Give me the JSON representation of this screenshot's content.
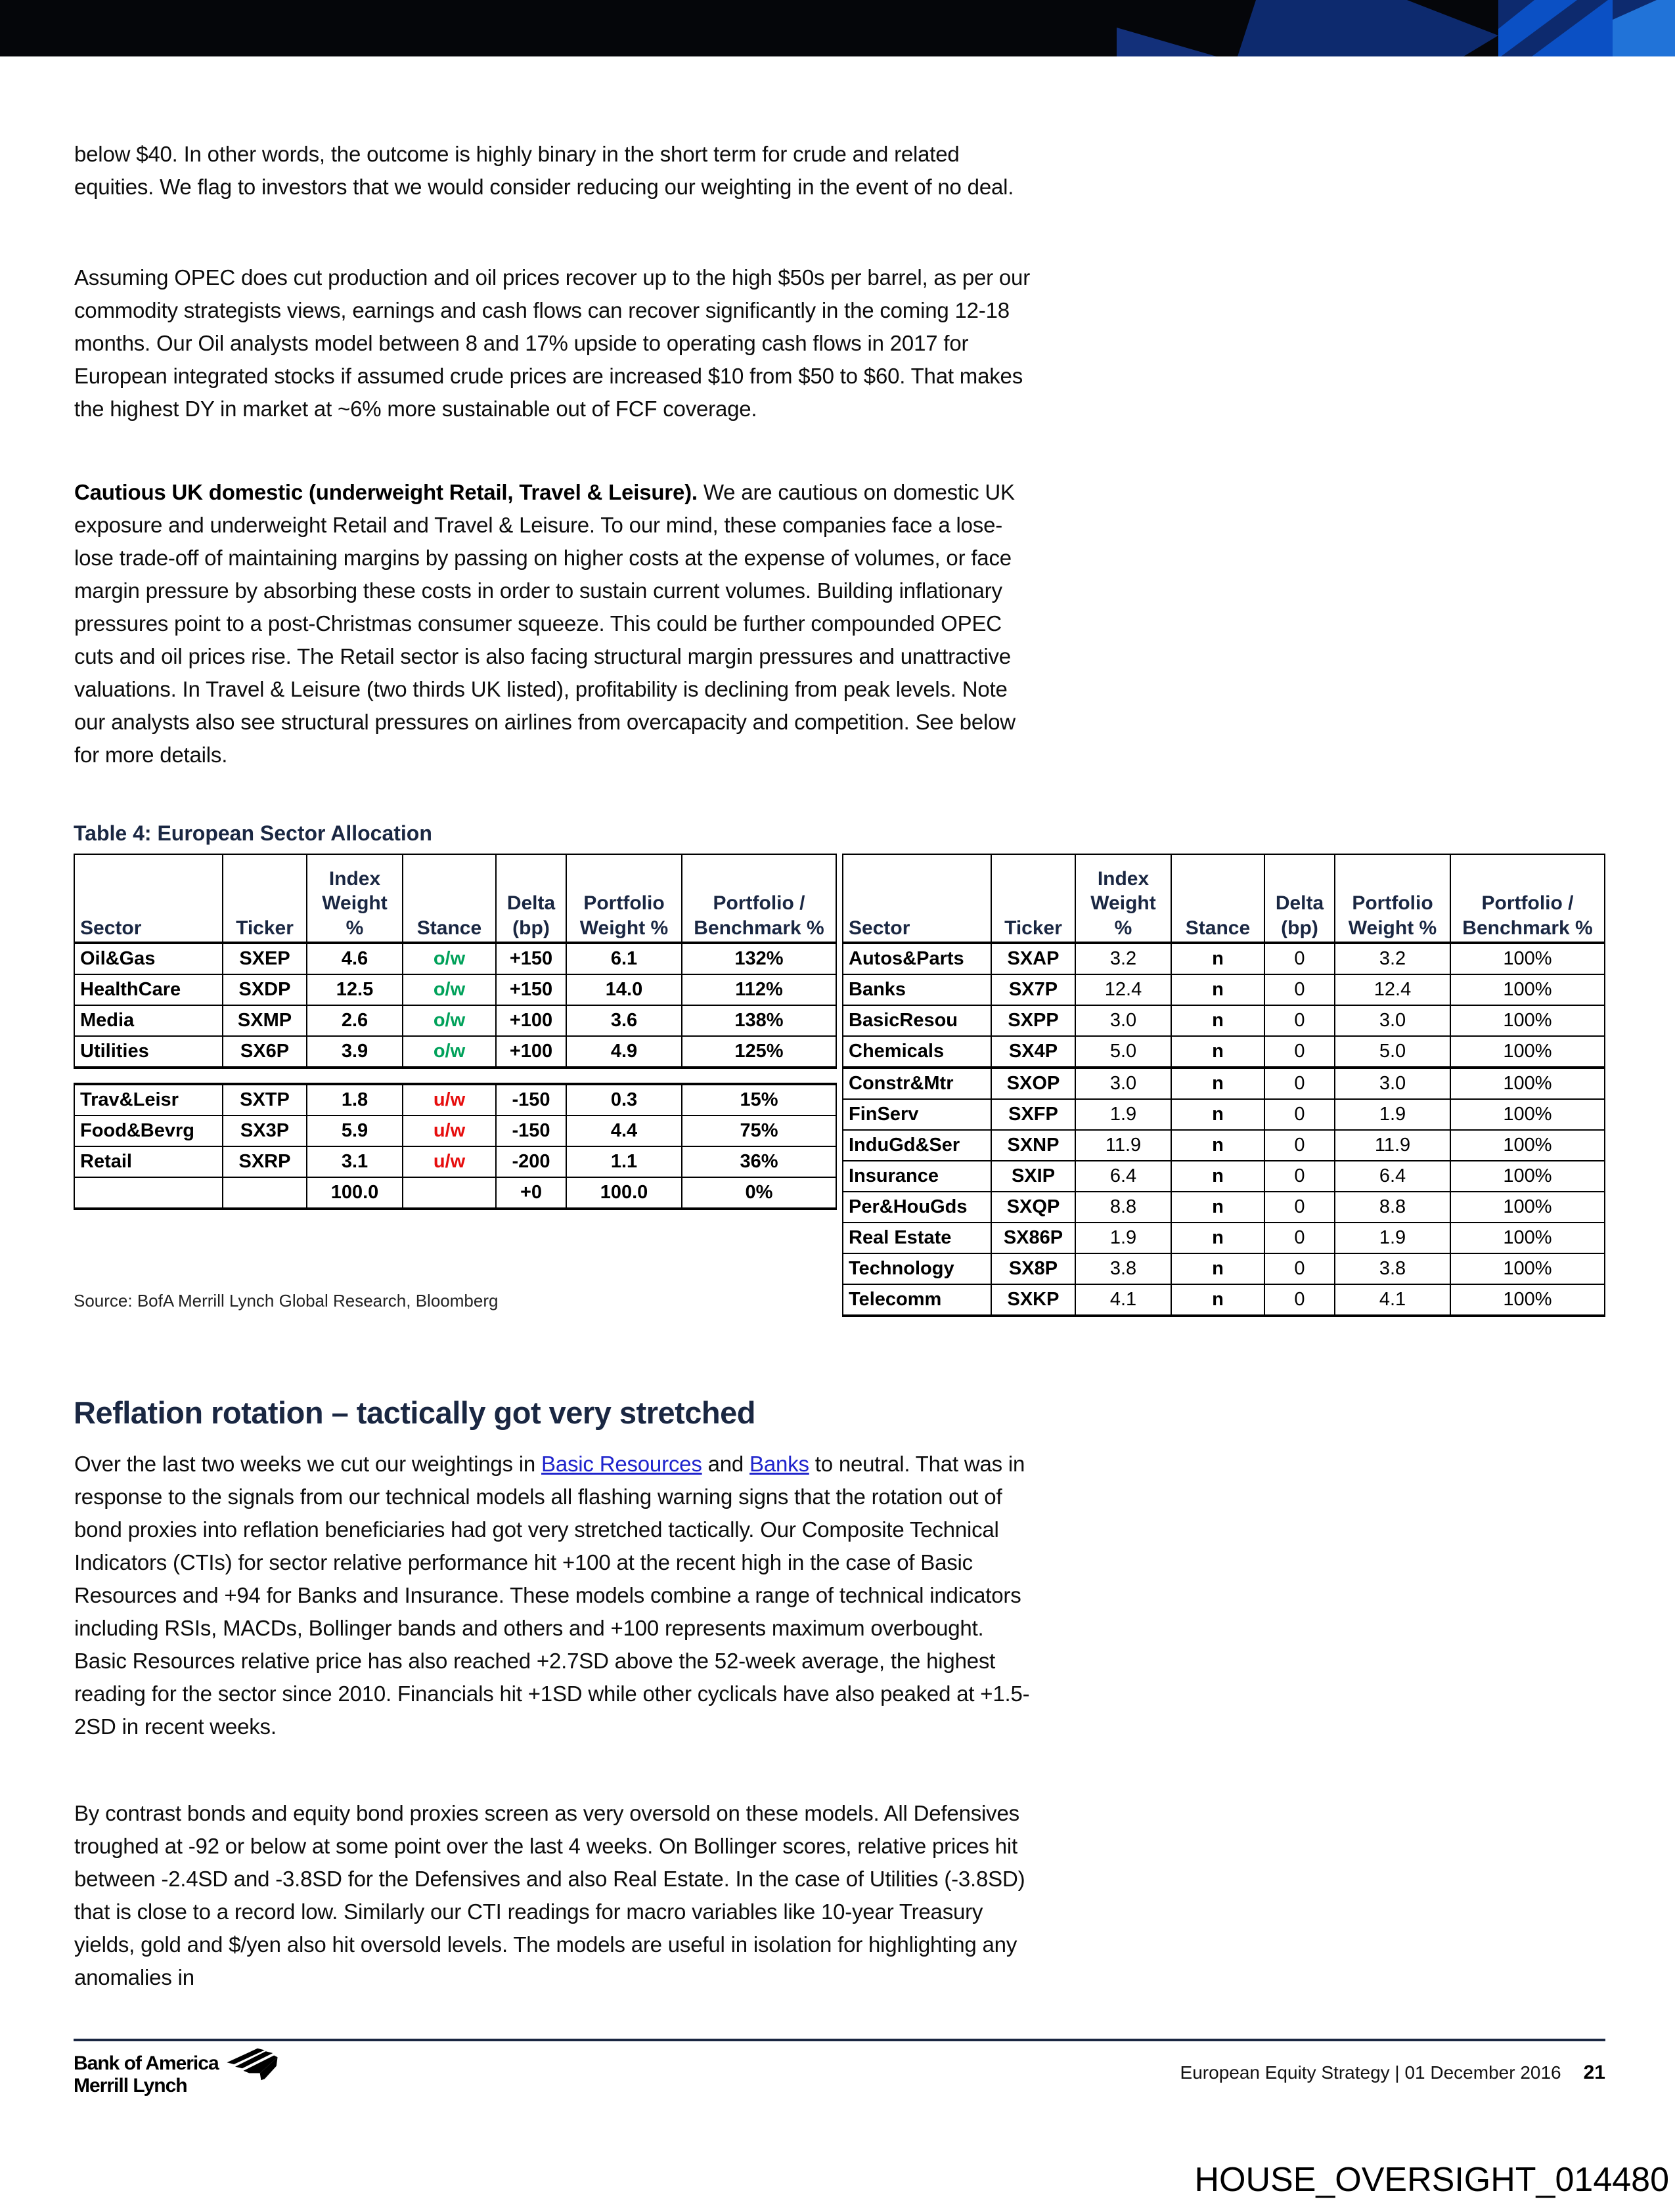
{
  "colors": {
    "navy": "#1a2742",
    "overweight_green": "#00a15a",
    "underweight_red": "#e60d0d",
    "link_blue": "#1f24cc",
    "banner_black": "#05060a",
    "banner_navy": "#0d2a6e",
    "banner_blue": "#0b50c4",
    "banner_lightblue": "#2173d8"
  },
  "body": {
    "p1": "below $40. In other words, the outcome is highly binary in the short term for crude and related equities. We flag to investors that we would consider reducing our weighting in the event of no deal.",
    "p2": "Assuming OPEC does cut production and oil prices recover up to the high $50s per barrel, as per our commodity strategists views, earnings and cash flows can recover significantly in the coming 12-18 months. Our Oil analysts model between 8 and 17% upside to operating cash flows in 2017 for European integrated stocks if assumed crude prices are increased $10 from $50 to $60. That makes the highest DY in market at ~6% more sustainable out of FCF coverage.",
    "p3_lead": "Cautious UK domestic (underweight Retail, Travel & Leisure).",
    "p3_rest": " We are cautious on domestic UK exposure and underweight Retail and Travel & Leisure. To our mind, these companies face a lose-lose trade-off of maintaining margins by passing on higher costs at the expense of volumes, or face margin pressure by absorbing these costs in order to sustain current volumes. Building inflationary pressures point to a post-Christmas consumer squeeze. This could be further compounded OPEC cuts and oil prices rise. The Retail sector is also facing structural margin pressures and unattractive valuations. In Travel & Leisure (two thirds UK listed), profitability is declining from peak levels. Note our analysts also see structural pressures on airlines from overcapacity and competition. See below for more details.",
    "p4_pre": "Over the last two weeks we cut our weightings in ",
    "p4_link1": "Basic Resources",
    "p4_mid": " and ",
    "p4_link2": "Banks",
    "p4_post": " to neutral. That was in response to the signals from our technical models all flashing warning signs that the rotation out of bond proxies into reflation beneficiaries had got very stretched tactically. Our Composite Technical Indicators (CTIs) for sector relative performance hit +100 at the recent high in the case of Basic Resources and +94 for Banks and Insurance. These models combine a range of technical indicators including RSIs, MACDs, Bollinger bands and others and +100 represents maximum overbought. Basic Resources relative price has also reached +2.7SD above the 52-week average, the highest reading for the sector since 2010. Financials hit +1SD while other cyclicals have also peaked at +1.5-2SD in recent weeks.",
    "p5": "By contrast bonds and equity bond proxies screen as very oversold on these models. All Defensives troughed at -92 or below at some point over the last 4 weeks. On Bollinger scores, relative prices hit between -2.4SD and -3.8SD for the Defensives and also Real Estate. In the case of Utilities (-3.8SD) that is close to a record low. Similarly our CTI readings for macro variables like 10-year Treasury yields, gold and $/yen also hit oversold levels. The models are useful in isolation for highlighting any anomalies in"
  },
  "section": {
    "heading": "Reflation rotation – tactically got very stretched"
  },
  "table": {
    "title": "Table 4: European Sector Allocation",
    "headers": [
      "Sector",
      "Ticker",
      "Index\nWeight\n%",
      "Stance",
      "Delta\n(bp)",
      "Portfolio\nWeight %",
      "Portfolio /\nBenchmark %"
    ],
    "left": {
      "group1": [
        [
          "Oil&Gas",
          "SXEP",
          "4.6",
          "o/w",
          "+150",
          "6.1",
          "132%"
        ],
        [
          "HealthCare",
          "SXDP",
          "12.5",
          "o/w",
          "+150",
          "14.0",
          "112%"
        ],
        [
          "Media",
          "SXMP",
          "2.6",
          "o/w",
          "+100",
          "3.6",
          "138%"
        ],
        [
          "Utilities",
          "SX6P",
          "3.9",
          "o/w",
          "+100",
          "4.9",
          "125%"
        ]
      ],
      "group2": [
        [
          "Trav&Leisr",
          "SXTP",
          "1.8",
          "u/w",
          "-150",
          "0.3",
          "15%"
        ],
        [
          "Food&Bevrg",
          "SX3P",
          "5.9",
          "u/w",
          "-150",
          "4.4",
          "75%"
        ],
        [
          "Retail",
          "SXRP",
          "3.1",
          "u/w",
          "-200",
          "1.1",
          "36%"
        ],
        [
          "",
          "",
          "100.0",
          "",
          "+0",
          "100.0",
          "0%"
        ]
      ]
    },
    "right": {
      "rows": [
        [
          "Autos&Parts",
          "SXAP",
          "3.2",
          "n",
          "0",
          "3.2",
          "100%"
        ],
        [
          "Banks",
          "SX7P",
          "12.4",
          "n",
          "0",
          "12.4",
          "100%"
        ],
        [
          "BasicResou",
          "SXPP",
          "3.0",
          "n",
          "0",
          "3.0",
          "100%"
        ],
        [
          "Chemicals",
          "SX4P",
          "5.0",
          "n",
          "0",
          "5.0",
          "100%"
        ],
        [
          "Constr&Mtr",
          "SXOP",
          "3.0",
          "n",
          "0",
          "3.0",
          "100%"
        ],
        [
          "FinServ",
          "SXFP",
          "1.9",
          "n",
          "0",
          "1.9",
          "100%"
        ],
        [
          "InduGd&Ser",
          "SXNP",
          "11.9",
          "n",
          "0",
          "11.9",
          "100%"
        ],
        [
          "Insurance",
          "SXIP",
          "6.4",
          "n",
          "0",
          "6.4",
          "100%"
        ],
        [
          "Per&HouGds",
          "SXQP",
          "8.8",
          "n",
          "0",
          "8.8",
          "100%"
        ],
        [
          "Real Estate",
          "SX86P",
          "1.9",
          "n",
          "0",
          "1.9",
          "100%"
        ],
        [
          "Technology",
          "SX8P",
          "3.8",
          "n",
          "0",
          "3.8",
          "100%"
        ],
        [
          "Telecomm",
          "SXKP",
          "4.1",
          "n",
          "0",
          "4.1",
          "100%"
        ]
      ]
    },
    "source": "Source: BofA Merrill Lynch Global Research, Bloomberg"
  },
  "footer": {
    "brand_line1": "Bank of America",
    "brand_line2": "Merrill Lynch",
    "right_text": "European Equity Strategy | 01 December 2016",
    "page_number": "21"
  },
  "watermark": "HOUSE_OVERSIGHT_014480"
}
